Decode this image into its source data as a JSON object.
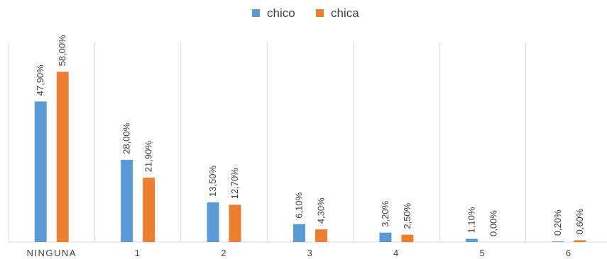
{
  "chart_data": {
    "type": "bar",
    "categories": [
      "NINGUNA",
      "1",
      "2",
      "3",
      "4",
      "5",
      "6"
    ],
    "series": [
      {
        "name": "chico",
        "color": "#5b9bd5",
        "values": [
          47.9,
          28.0,
          13.5,
          6.1,
          3.2,
          1.1,
          0.2
        ],
        "labels": [
          "47,90%",
          "28,00%",
          "13,50%",
          "6,10%",
          "3,20%",
          "1,10%",
          "0,20%"
        ]
      },
      {
        "name": "chica",
        "color": "#ed7d31",
        "values": [
          58.0,
          21.9,
          12.7,
          4.3,
          2.5,
          0.0,
          0.6
        ],
        "labels": [
          "58,00%",
          "21,90%",
          "12,70%",
          "4,30%",
          "2,50%",
          "0,00%",
          "0,60%"
        ]
      }
    ],
    "ylim": [
      0,
      68
    ],
    "grid": true,
    "legend_position": "top-center",
    "title": "",
    "xlabel": "",
    "ylabel": ""
  }
}
